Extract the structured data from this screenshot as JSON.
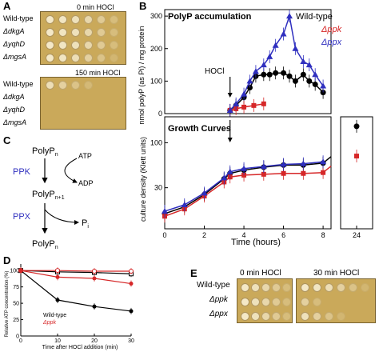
{
  "panel_a": {
    "letter": "A",
    "title_0min": "0 min HOCl",
    "title_150min": "150 min HOCl",
    "strains": [
      "Wild-type",
      "ΔdkgA",
      "ΔyqhD",
      "ΔmgsA"
    ]
  },
  "panel_b": {
    "letter": "B",
    "top_title": "PolyP accumulation",
    "bottom_title": "Growth Curves",
    "ylabel_top": "nmol polyP (as Pi) / mg protein",
    "ylabel_bottom": "culture density (Klett units)",
    "xlabel": "Time (hours)",
    "arrow_label": "HOCl",
    "legend": [
      "Wild-type",
      "Δppk",
      "Δppx"
    ],
    "legend_colors": [
      "#000000",
      "#d62728",
      "#2f2fbf"
    ],
    "top_yticks": [
      "0",
      "100",
      "200",
      "300"
    ],
    "bottom_yticks": [
      "30",
      "100"
    ],
    "xticks": [
      "0",
      "2",
      "4",
      "6",
      "8",
      "24"
    ]
  },
  "panel_c": {
    "letter": "C",
    "polyp_n": "PolyPn",
    "polyp_n1": "PolyPn+1",
    "polyp_n2": "PolyPn",
    "ppk": "PPK",
    "ppx": "PPX",
    "atp": "ATP",
    "adp": "ADP",
    "pi": "Pi"
  },
  "panel_d": {
    "letter": "D",
    "ylabel": "Relative ATP concentration (%)",
    "xlabel": "Time after HOCl addition (min)",
    "legend": [
      "Wild-type",
      "Δppk"
    ],
    "yticks": [
      "0",
      "25",
      "50",
      "75",
      "100"
    ],
    "xticks": [
      "0",
      "10",
      "20",
      "30"
    ]
  },
  "panel_e": {
    "letter": "E",
    "title_0min": "0 min HOCl",
    "title_30min": "30 min HOCl",
    "strains": [
      "Wild-type",
      "Δppk",
      "Δppx"
    ]
  },
  "chart_data": [
    {
      "type": "line",
      "title": "PolyP accumulation",
      "xlabel": "Time (hours)",
      "ylabel": "nmol polyP (as Pi) / mg protein",
      "ylim": [
        0,
        300
      ],
      "series": [
        {
          "name": "Wild-type",
          "color": "#000000",
          "x": [
            3.3,
            3.6,
            4.0,
            4.3,
            4.6,
            5.0,
            5.3,
            5.6,
            6.0,
            6.3,
            6.6,
            7.0,
            7.3,
            7.6,
            8.0
          ],
          "y": [
            10,
            25,
            50,
            80,
            115,
            120,
            120,
            125,
            125,
            115,
            100,
            120,
            100,
            90,
            65
          ]
        },
        {
          "name": "Δppk",
          "color": "#d62728",
          "x": [
            3.3,
            3.6,
            4.0,
            4.5,
            5.0
          ],
          "y": [
            10,
            15,
            20,
            25,
            30
          ]
        },
        {
          "name": "Δppx",
          "color": "#2f2fbf",
          "x": [
            3.3,
            3.6,
            4.0,
            4.3,
            4.6,
            5.0,
            5.3,
            5.6,
            6.0,
            6.3,
            6.6,
            7.0,
            7.3,
            7.6,
            8.0
          ],
          "y": [
            10,
            30,
            60,
            100,
            130,
            150,
            175,
            210,
            245,
            300,
            200,
            160,
            150,
            120,
            85
          ]
        }
      ]
    },
    {
      "type": "line",
      "title": "Growth Curves",
      "xlabel": "Time (hours)",
      "ylabel": "culture density (Klett units)",
      "yscale": "log",
      "series": [
        {
          "name": "Wild-type",
          "color": "#000000",
          "x": [
            0,
            1,
            2,
            3,
            3.3,
            4,
            5,
            6,
            7,
            8,
            24
          ],
          "y": [
            15,
            18,
            25,
            38,
            44,
            48,
            52,
            55,
            55,
            58,
            155
          ]
        },
        {
          "name": "Δppk",
          "color": "#d62728",
          "x": [
            0,
            1,
            2,
            3,
            3.3,
            4,
            5,
            6,
            7,
            8,
            24
          ],
          "y": [
            14,
            17,
            24,
            35,
            40,
            42,
            43,
            44,
            44,
            45,
            70
          ]
        },
        {
          "name": "Δppx",
          "color": "#2f2fbf",
          "x": [
            0,
            1,
            2,
            3,
            3.3,
            4,
            5,
            6,
            7,
            8
          ],
          "y": [
            16,
            19,
            26,
            39,
            46,
            50,
            53,
            56,
            57,
            60
          ]
        }
      ]
    },
    {
      "type": "line",
      "xlabel": "Time after HOCl addition (min)",
      "ylabel": "Relative ATP concentration (%)",
      "ylim": [
        0,
        100
      ],
      "series": [
        {
          "name": "Wild-type, 0 min",
          "color": "#000000",
          "x": [
            0,
            10,
            20,
            30
          ],
          "y": [
            100,
            98,
            97,
            95
          ]
        },
        {
          "name": "Wild-type, HOCl",
          "color": "#000000",
          "x": [
            0,
            10,
            20,
            30
          ],
          "y": [
            100,
            55,
            45,
            38
          ]
        },
        {
          "name": "Δppk, 0 min",
          "color": "#d62728",
          "x": [
            0,
            10,
            20,
            30
          ],
          "y": [
            100,
            100,
            99,
            99
          ]
        },
        {
          "name": "Δppk, HOCl",
          "color": "#d62728",
          "x": [
            0,
            10,
            20,
            30
          ],
          "y": [
            100,
            90,
            88,
            80
          ]
        }
      ]
    }
  ]
}
